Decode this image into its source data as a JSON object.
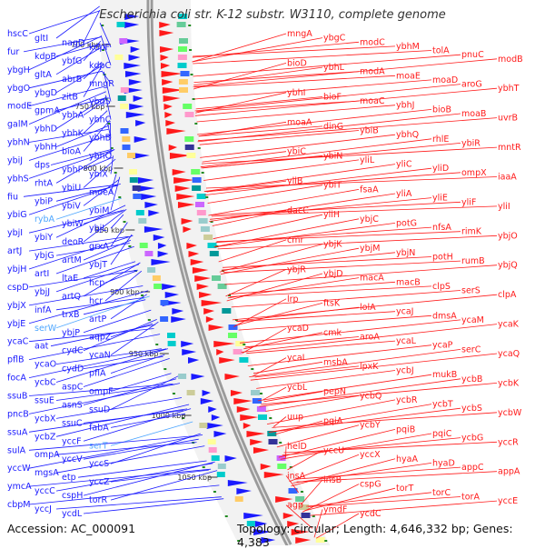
{
  "title": "Escherichia coli str. K-12 substr. W3110, complete genome",
  "footer": {
    "accession": "Accession: AC_000091",
    "summary": "Topology: circular; Length: 4,646,332 bp; Genes: 4,383"
  },
  "colors": {
    "forward": "#ff1a1a",
    "reverse": "#1a1aff",
    "rna": "#4da6ff",
    "axis": "#888888",
    "tick": "#228b22"
  },
  "scale_labels": [
    "700 kbp",
    "750 kbp",
    "800 kbp",
    "850 kbp",
    "900 kbp",
    "950 kbp",
    "1000 kbp",
    "1050 kbp"
  ],
  "left_genes": [
    {
      "t": "hscC",
      "c": "blue"
    },
    {
      "t": "gltI",
      "c": "blue"
    },
    {
      "t": "nagD",
      "c": "blue"
    },
    {
      "t": "kdpF",
      "c": "blue"
    },
    {
      "t": "fur",
      "c": "blue"
    },
    {
      "t": "kdpB",
      "c": "blue"
    },
    {
      "t": "ybfG",
      "c": "blue"
    },
    {
      "t": "kdpC",
      "c": "blue"
    },
    {
      "t": "ybgH",
      "c": "blue"
    },
    {
      "t": "gltA",
      "c": "blue"
    },
    {
      "t": "abrB",
      "c": "blue"
    },
    {
      "t": "mngR",
      "c": "blue"
    },
    {
      "t": "ybgO",
      "c": "blue"
    },
    {
      "t": "ybgD",
      "c": "blue"
    },
    {
      "t": "zitB",
      "c": "blue"
    },
    {
      "t": "ybgS",
      "c": "blue"
    },
    {
      "t": "modE",
      "c": "blue"
    },
    {
      "t": "gpmA",
      "c": "blue"
    },
    {
      "t": "ybhA",
      "c": "blue"
    },
    {
      "t": "ybhC",
      "c": "blue"
    },
    {
      "t": "galM",
      "c": "blue"
    },
    {
      "t": "ybhD",
      "c": "blue"
    },
    {
      "t": "ybhK",
      "c": "blue"
    },
    {
      "t": "ybhB",
      "c": "blue"
    },
    {
      "t": "ybhN",
      "c": "blue"
    },
    {
      "t": "ybhH",
      "c": "blue"
    },
    {
      "t": "bioA",
      "c": "blue"
    },
    {
      "t": "ybhO",
      "c": "blue"
    },
    {
      "t": "ybiJ",
      "c": "blue"
    },
    {
      "t": "dps",
      "c": "blue"
    },
    {
      "t": "ybhP",
      "c": "blue"
    },
    {
      "t": "ybiX",
      "c": "blue"
    },
    {
      "t": "ybhS",
      "c": "blue"
    },
    {
      "t": "rhtA",
      "c": "blue"
    },
    {
      "t": "ybiU",
      "c": "blue"
    },
    {
      "t": "moeA",
      "c": "blue"
    },
    {
      "t": "fiu",
      "c": "blue"
    },
    {
      "t": "ybiP",
      "c": "blue"
    },
    {
      "t": "ybiV",
      "c": "blue"
    },
    {
      "t": "ybiM",
      "c": "blue"
    },
    {
      "t": "ybiG",
      "c": "blue"
    },
    {
      "t": "rybA",
      "c": "light"
    },
    {
      "t": "ybiW",
      "c": "blue"
    },
    {
      "t": "ybjL",
      "c": "blue"
    },
    {
      "t": "ybjI",
      "c": "blue"
    },
    {
      "t": "ybiY",
      "c": "blue"
    },
    {
      "t": "deoR",
      "c": "blue"
    },
    {
      "t": "grxA",
      "c": "blue"
    },
    {
      "t": "artJ",
      "c": "blue"
    },
    {
      "t": "ybjG",
      "c": "blue"
    },
    {
      "t": "artM",
      "c": "blue"
    },
    {
      "t": "ybjT",
      "c": "blue"
    },
    {
      "t": "ybjH",
      "c": "blue"
    },
    {
      "t": "artI",
      "c": "blue"
    },
    {
      "t": "ltaE",
      "c": "blue"
    },
    {
      "t": "hcp",
      "c": "blue"
    },
    {
      "t": "cspD",
      "c": "blue"
    },
    {
      "t": "ybjJ",
      "c": "blue"
    },
    {
      "t": "artQ",
      "c": "blue"
    },
    {
      "t": "hcr",
      "c": "blue"
    },
    {
      "t": "ybjX",
      "c": "blue"
    },
    {
      "t": "infA",
      "c": "blue"
    },
    {
      "t": "trxB",
      "c": "blue"
    },
    {
      "t": "artP",
      "c": "blue"
    },
    {
      "t": "ybjE",
      "c": "blue"
    },
    {
      "t": "serW",
      "c": "light"
    },
    {
      "t": "ybjP",
      "c": "blue"
    },
    {
      "t": "aqpZ",
      "c": "blue"
    },
    {
      "t": "ycaC",
      "c": "blue"
    },
    {
      "t": "aat",
      "c": "blue"
    },
    {
      "t": "cydC",
      "c": "blue"
    },
    {
      "t": "ycaN",
      "c": "blue"
    },
    {
      "t": "pflB",
      "c": "blue"
    },
    {
      "t": "ycaO",
      "c": "blue"
    },
    {
      "t": "cydD",
      "c": "blue"
    },
    {
      "t": "pflA",
      "c": "blue"
    },
    {
      "t": "focA",
      "c": "blue"
    },
    {
      "t": "ycbC",
      "c": "blue"
    },
    {
      "t": "aspC",
      "c": "blue"
    },
    {
      "t": "ompF",
      "c": "blue"
    },
    {
      "t": "ssuB",
      "c": "blue"
    },
    {
      "t": "ssuE",
      "c": "blue"
    },
    {
      "t": "asnS",
      "c": "blue"
    },
    {
      "t": "ssuD",
      "c": "blue"
    },
    {
      "t": "pncB",
      "c": "blue"
    },
    {
      "t": "ycbX",
      "c": "blue"
    },
    {
      "t": "ssuC",
      "c": "blue"
    },
    {
      "t": "fabA",
      "c": "blue"
    },
    {
      "t": "ssuA",
      "c": "blue"
    },
    {
      "t": "ycbZ",
      "c": "blue"
    },
    {
      "t": "yccF",
      "c": "blue"
    },
    {
      "t": "serT",
      "c": "light"
    },
    {
      "t": "sulA",
      "c": "blue"
    },
    {
      "t": "ompA",
      "c": "blue"
    },
    {
      "t": "yccV",
      "c": "blue"
    },
    {
      "t": "yccS",
      "c": "blue"
    },
    {
      "t": "yccW",
      "c": "blue"
    },
    {
      "t": "mgsA",
      "c": "blue"
    },
    {
      "t": "etp",
      "c": "blue"
    },
    {
      "t": "yccZ",
      "c": "blue"
    },
    {
      "t": "ymcA",
      "c": "blue"
    },
    {
      "t": "yccC",
      "c": "blue"
    },
    {
      "t": "cspH",
      "c": "blue"
    },
    {
      "t": "torR",
      "c": "blue"
    },
    {
      "t": "cbpM",
      "c": "blue"
    },
    {
      "t": "yccJ",
      "c": "blue"
    },
    {
      "t": "ycdL",
      "c": "blue"
    }
  ],
  "right_genes": [
    {
      "t": "mngA",
      "c": "red"
    },
    {
      "t": "ybgC",
      "c": "red"
    },
    {
      "t": "modC",
      "c": "red"
    },
    {
      "t": "ybhM",
      "c": "red"
    },
    {
      "t": "tolA",
      "c": "red"
    },
    {
      "t": "pnuC",
      "c": "red"
    },
    {
      "t": "modB",
      "c": "red"
    },
    {
      "t": "bioD",
      "c": "red"
    },
    {
      "t": "ybhL",
      "c": "red"
    },
    {
      "t": "modA",
      "c": "red"
    },
    {
      "t": "moaE",
      "c": "red"
    },
    {
      "t": "moaD",
      "c": "red"
    },
    {
      "t": "aroG",
      "c": "red"
    },
    {
      "t": "ybhT",
      "c": "red"
    },
    {
      "t": "ybhI",
      "c": "red"
    },
    {
      "t": "bioF",
      "c": "red"
    },
    {
      "t": "moaC",
      "c": "red"
    },
    {
      "t": "ybhJ",
      "c": "red"
    },
    {
      "t": "bioB",
      "c": "red"
    },
    {
      "t": "moaB",
      "c": "red"
    },
    {
      "t": "uvrB",
      "c": "red"
    },
    {
      "t": "moaA",
      "c": "red"
    },
    {
      "t": "dinG",
      "c": "red"
    },
    {
      "t": "ybiB",
      "c": "red"
    },
    {
      "t": "ybhQ",
      "c": "red"
    },
    {
      "t": "rhlE",
      "c": "red"
    },
    {
      "t": "ybiR",
      "c": "red"
    },
    {
      "t": "mntR",
      "c": "red"
    },
    {
      "t": "ybiC",
      "c": "red"
    },
    {
      "t": "ybiN",
      "c": "red"
    },
    {
      "t": "yliL",
      "c": "red"
    },
    {
      "t": "yliC",
      "c": "red"
    },
    {
      "t": "yliD",
      "c": "red"
    },
    {
      "t": "ompX",
      "c": "red"
    },
    {
      "t": "iaaA",
      "c": "red"
    },
    {
      "t": "yliB",
      "c": "red"
    },
    {
      "t": "ybiT",
      "c": "red"
    },
    {
      "t": "fsaA",
      "c": "red"
    },
    {
      "t": "yliA",
      "c": "red"
    },
    {
      "t": "yliE",
      "c": "red"
    },
    {
      "t": "yliF",
      "c": "red"
    },
    {
      "t": "yliI",
      "c": "red"
    },
    {
      "t": "dacC",
      "c": "red"
    },
    {
      "t": "yliH",
      "c": "red"
    },
    {
      "t": "ybjC",
      "c": "red"
    },
    {
      "t": "potG",
      "c": "red"
    },
    {
      "t": "nfsA",
      "c": "red"
    },
    {
      "t": "rimK",
      "c": "red"
    },
    {
      "t": "ybjO",
      "c": "red"
    },
    {
      "t": "cmr",
      "c": "red"
    },
    {
      "t": "ybjK",
      "c": "red"
    },
    {
      "t": "ybjM",
      "c": "red"
    },
    {
      "t": "ybjN",
      "c": "red"
    },
    {
      "t": "potH",
      "c": "red"
    },
    {
      "t": "rumB",
      "c": "red"
    },
    {
      "t": "ybjQ",
      "c": "red"
    },
    {
      "t": "ybjR",
      "c": "red"
    },
    {
      "t": "ybjD",
      "c": "red"
    },
    {
      "t": "macA",
      "c": "red"
    },
    {
      "t": "macB",
      "c": "red"
    },
    {
      "t": "clpS",
      "c": "red"
    },
    {
      "t": "serS",
      "c": "red"
    },
    {
      "t": "clpA",
      "c": "red"
    },
    {
      "t": "lrp",
      "c": "red"
    },
    {
      "t": "ftsK",
      "c": "red"
    },
    {
      "t": "lolA",
      "c": "red"
    },
    {
      "t": "ycaJ",
      "c": "red"
    },
    {
      "t": "dmsA",
      "c": "red"
    },
    {
      "t": "ycaM",
      "c": "red"
    },
    {
      "t": "ycaK",
      "c": "red"
    },
    {
      "t": "ycaD",
      "c": "red"
    },
    {
      "t": "cmk",
      "c": "red"
    },
    {
      "t": "aroA",
      "c": "red"
    },
    {
      "t": "ycaL",
      "c": "red"
    },
    {
      "t": "ycaP",
      "c": "red"
    },
    {
      "t": "serC",
      "c": "red"
    },
    {
      "t": "ycaQ",
      "c": "red"
    },
    {
      "t": "ycaI",
      "c": "red"
    },
    {
      "t": "msbA",
      "c": "red"
    },
    {
      "t": "lpxK",
      "c": "red"
    },
    {
      "t": "ycbJ",
      "c": "red"
    },
    {
      "t": "mukB",
      "c": "red"
    },
    {
      "t": "ycbB",
      "c": "red"
    },
    {
      "t": "ycbK",
      "c": "red"
    },
    {
      "t": "ycbL",
      "c": "red"
    },
    {
      "t": "pepN",
      "c": "red"
    },
    {
      "t": "ycbQ",
      "c": "red"
    },
    {
      "t": "ycbR",
      "c": "red"
    },
    {
      "t": "ycbT",
      "c": "red"
    },
    {
      "t": "ycbS",
      "c": "red"
    },
    {
      "t": "ycbW",
      "c": "red"
    },
    {
      "t": "uup",
      "c": "red"
    },
    {
      "t": "pqiA",
      "c": "red"
    },
    {
      "t": "ycbY",
      "c": "red"
    },
    {
      "t": "pqiB",
      "c": "red"
    },
    {
      "t": "pqiC",
      "c": "red"
    },
    {
      "t": "ycbG",
      "c": "red"
    },
    {
      "t": "yccR",
      "c": "red"
    },
    {
      "t": "helD",
      "c": "red"
    },
    {
      "t": "yccU",
      "c": "red"
    },
    {
      "t": "yccX",
      "c": "red"
    },
    {
      "t": "hyaA",
      "c": "red"
    },
    {
      "t": "hyaD",
      "c": "red"
    },
    {
      "t": "appC",
      "c": "red"
    },
    {
      "t": "appA",
      "c": "red"
    },
    {
      "t": "insA",
      "c": "red"
    },
    {
      "t": "insB",
      "c": "red"
    },
    {
      "t": "cspG",
      "c": "red"
    },
    {
      "t": "torT",
      "c": "red"
    },
    {
      "t": "torC",
      "c": "red"
    },
    {
      "t": "torA",
      "c": "red"
    },
    {
      "t": "yccE",
      "c": "red"
    },
    {
      "t": "agp",
      "c": "red"
    },
    {
      "t": "ymdF",
      "c": "red"
    },
    {
      "t": "ycdC",
      "c": "red"
    }
  ]
}
